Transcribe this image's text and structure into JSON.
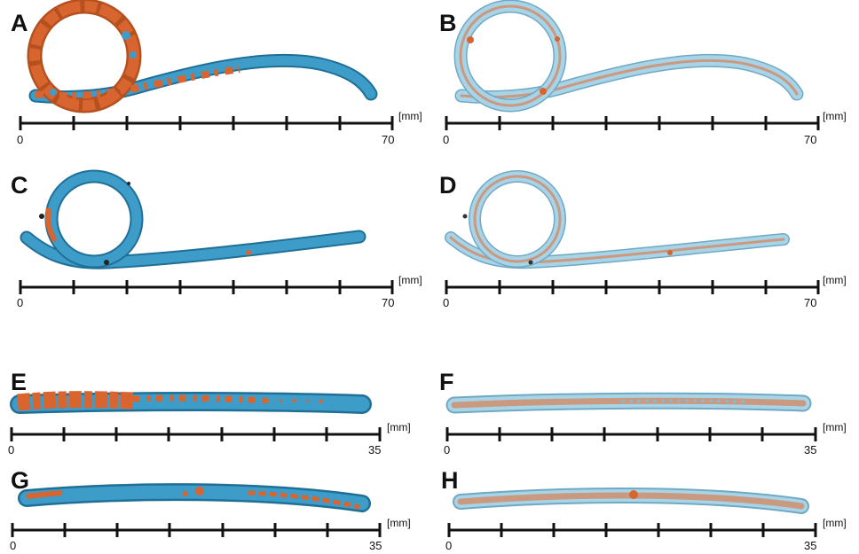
{
  "panels": [
    {
      "label": "A",
      "scale": {
        "start": "0",
        "end": "70",
        "unit": "[mm]"
      },
      "style": "solid-coated"
    },
    {
      "label": "B",
      "scale": {
        "start": "0",
        "end": "70",
        "unit": "[mm]"
      },
      "style": "transparent-coated"
    },
    {
      "label": "C",
      "scale": {
        "start": "0",
        "end": "70",
        "unit": "[mm]"
      },
      "style": "solid-light"
    },
    {
      "label": "D",
      "scale": {
        "start": "0",
        "end": "70",
        "unit": "[mm]"
      },
      "style": "transparent-light"
    },
    {
      "label": "E",
      "scale": {
        "start": "0",
        "end": "35",
        "unit": "[mm]"
      },
      "style": "solid-coated"
    },
    {
      "label": "F",
      "scale": {
        "start": "0",
        "end": "35",
        "unit": "[mm]"
      },
      "style": "transparent-coated"
    },
    {
      "label": "G",
      "scale": {
        "start": "0",
        "end": "35",
        "unit": "[mm]"
      },
      "style": "solid-light"
    },
    {
      "label": "H",
      "scale": {
        "start": "0",
        "end": "35",
        "unit": "[mm]"
      },
      "style": "transparent-light"
    }
  ],
  "colors": {
    "tube_blue": "#3e9cc9",
    "tube_blue_dark": "#1f6f96",
    "tube_transparent": "#a9d3e6",
    "deposit_orange": "#d8652f",
    "core_tan": "#c99a80",
    "scale_bar": "#111111"
  }
}
